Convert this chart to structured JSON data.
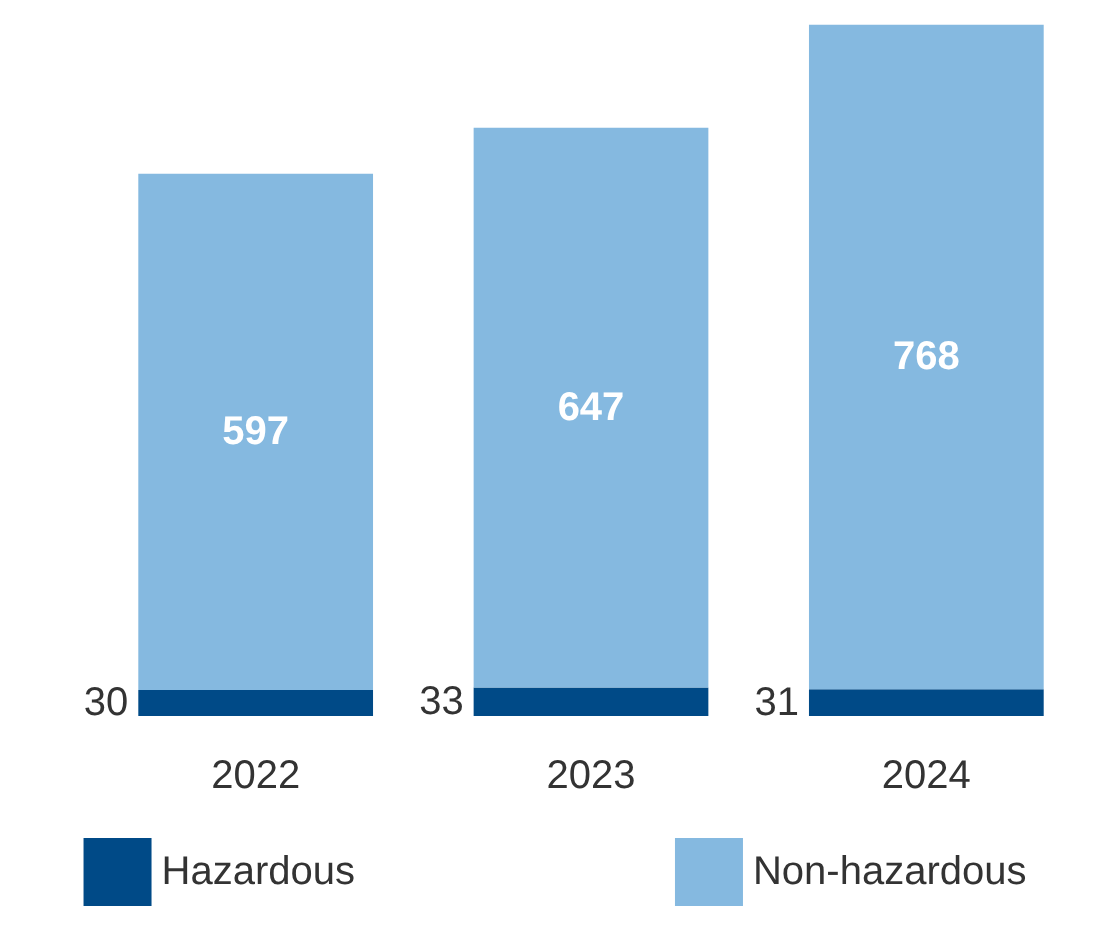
{
  "chart_data": {
    "type": "bar",
    "stacked": true,
    "categories": [
      "2022",
      "2023",
      "2024"
    ],
    "series": [
      {
        "name": "Hazardous",
        "color": "#004a87",
        "values": [
          30,
          33,
          31
        ]
      },
      {
        "name": "Non-hazardous",
        "color": "#85b9e0",
        "values": [
          597,
          647,
          768
        ]
      }
    ],
    "data_labels": true,
    "legend": "bottom",
    "grid": false
  }
}
